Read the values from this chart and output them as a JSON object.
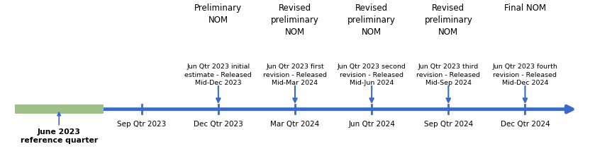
{
  "figsize": [
    8.32,
    2.38
  ],
  "dpi": 100,
  "background_color": "#ffffff",
  "timeline_color": "#3A6BC9",
  "tick_color": "#3A6BC9",
  "ref_box_color": "#9DC08B",
  "event_titles": [
    "Preliminary\nNOM",
    "Revised\npreliminary\nNOM",
    "Revised\npreliminary\nNOM",
    "Revised\npreliminary\nNOM",
    "Final NOM"
  ],
  "event_subtitles": [
    "Jun Qtr 2023 initial\nestimate - Released\nMid-Dec 2023",
    "Jun Qtr 2023 first\nrevision - Released\nMid-Mar 2024",
    "Jun Qtr 2023 second\nrevision - Released\nMid-Jun 2024",
    "Jun Qtr 2023 third\nrevision - Released\nMid-Sep 2024",
    "Jun Qtr 2023 fourth\nrevision - Released\nMid-Dec 2024"
  ],
  "tick_labels": [
    "Sep Qtr 2023",
    "Dec Qtr 2023",
    "Mar Qtr 2024",
    "Jun Qtr 2024",
    "Sep Qtr 2024",
    "Dec Qtr 2024"
  ],
  "ref_label": "June 2023\nreference quarter",
  "text_color": "#000000"
}
